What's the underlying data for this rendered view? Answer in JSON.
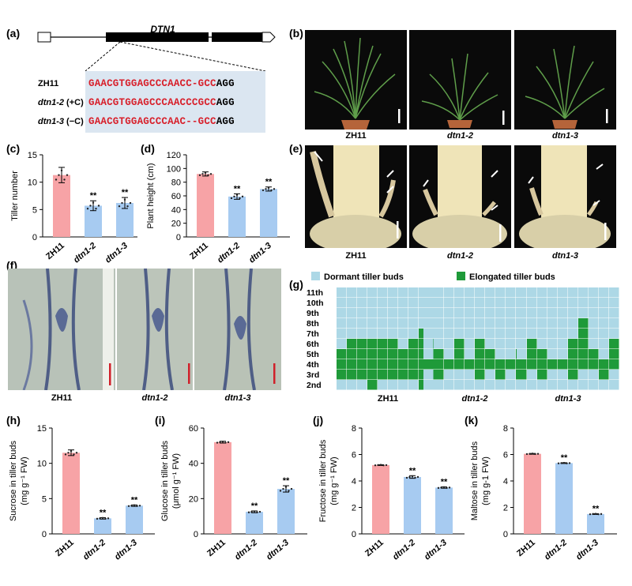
{
  "panels": {
    "a": "(a)",
    "b": "(b)",
    "c": "(c)",
    "d": "(d)",
    "e": "(e)",
    "f": "(f)",
    "g": "(g)",
    "h": "(h)",
    "i": "(i)",
    "j": "(j)",
    "k": "(k)"
  },
  "gene": {
    "name": "DTN1",
    "rows": [
      {
        "label": "ZH11",
        "seq_red": "GAACGTGGAGCCCAACC-GCC",
        "seq_black": "AGG"
      },
      {
        "label": "dtn1-2",
        "label_suffix": " (+C)",
        "seq_red": "GAACGTGGAGCCCAACCCGCC",
        "seq_black": "AGG"
      },
      {
        "label": "dtn1-3",
        "label_suffix": " (−C)",
        "seq_red": "GAACGTGGAGCCCAAC--GCC",
        "seq_black": "AGG"
      }
    ]
  },
  "genotypes": [
    "ZH11",
    "dtn1-2",
    "dtn1-3"
  ],
  "colors": {
    "zh11": "#f7a3a6",
    "mutant": "#a7cbf1",
    "dormant": "#add8e6",
    "elongated": "#1f9a39",
    "sig_seq": "#d8202b"
  },
  "tiller_buds": {
    "legend": {
      "dormant": "Dormant tiller buds",
      "elongated": "Elongated tiller buds"
    },
    "nodes": [
      "11th",
      "10th",
      "9th",
      "8th",
      "7th",
      "6th",
      "5th",
      "4th",
      "3rd",
      "2nd"
    ],
    "zh11_elongated_per_plant": [
      [
        3,
        5
      ],
      [
        3,
        6
      ],
      [
        3,
        6
      ],
      [
        2,
        6
      ],
      [
        3,
        6
      ],
      [
        3,
        6
      ],
      [
        3,
        5
      ],
      [
        3,
        6
      ],
      [
        2,
        7
      ],
      [
        3,
        6
      ]
    ],
    "dtn1_2_elongated_per_plant": [
      [
        4,
        4
      ],
      [
        3,
        5
      ],
      [
        4,
        4
      ],
      [
        4,
        6
      ],
      [
        4,
        4
      ],
      [
        3,
        6
      ],
      [
        4,
        5
      ],
      [
        3,
        4
      ],
      [
        4,
        4
      ],
      [
        3,
        5
      ]
    ],
    "dtn1_3_elongated_per_plant": [
      [
        3,
        4
      ],
      [
        4,
        6
      ],
      [
        3,
        5
      ],
      [
        4,
        4
      ],
      [
        4,
        4
      ],
      [
        3,
        6
      ],
      [
        4,
        8
      ],
      [
        4,
        5
      ],
      [
        3,
        4
      ],
      [
        4,
        6
      ]
    ]
  },
  "chart_data": [
    {
      "type": "bar",
      "panel": "c",
      "categories": [
        "ZH11",
        "dtn1-2",
        "dtn1-3"
      ],
      "values": [
        11.3,
        5.7,
        6.2
      ],
      "errors": [
        1.4,
        0.9,
        1.0
      ],
      "significance": [
        "",
        "**",
        "**"
      ],
      "ylabel": "Tiller number",
      "ylim": [
        0,
        15
      ],
      "yticks": [
        0,
        5,
        10,
        15
      ]
    },
    {
      "type": "bar",
      "panel": "d",
      "categories": [
        "ZH11",
        "dtn1-2",
        "dtn1-3"
      ],
      "values": [
        92,
        59,
        70
      ],
      "errors": [
        3,
        4,
        3
      ],
      "significance": [
        "",
        "**",
        "**"
      ],
      "ylabel": "Plant height (cm)",
      "ylim": [
        0,
        120
      ],
      "yticks": [
        0,
        20,
        40,
        60,
        80,
        100,
        120
      ]
    },
    {
      "type": "bar",
      "panel": "h",
      "categories": [
        "ZH11",
        "dtn1-2",
        "dtn1-3"
      ],
      "values": [
        11.5,
        2.2,
        4.0
      ],
      "errors": [
        0.4,
        0.1,
        0.1
      ],
      "significance": [
        "",
        "**",
        "**"
      ],
      "ylabel": "Sucrose in tiller buds",
      "yunit": "(mg g⁻¹ FW)",
      "ylim": [
        0,
        15
      ],
      "yticks": [
        0,
        5,
        10,
        15
      ]
    },
    {
      "type": "bar",
      "panel": "i",
      "categories": [
        "ZH11",
        "dtn1-2",
        "dtn1-3"
      ],
      "values": [
        52,
        12.5,
        25.5
      ],
      "errors": [
        0.5,
        0.5,
        1.8
      ],
      "significance": [
        "",
        "**",
        "**"
      ],
      "ylabel": "Glucose in tiller buds",
      "yunit": "(μmol g⁻¹ FW)",
      "ylim": [
        0,
        60
      ],
      "yticks": [
        0,
        20,
        40,
        60
      ]
    },
    {
      "type": "bar",
      "panel": "j",
      "categories": [
        "ZH11",
        "dtn1-2",
        "dtn1-3"
      ],
      "values": [
        5.2,
        4.3,
        3.5
      ],
      "errors": [
        0.03,
        0.1,
        0.05
      ],
      "significance": [
        "",
        "**",
        "**"
      ],
      "ylabel": "Fructose in tiller buds",
      "yunit": "(mg g⁻¹ FW)",
      "ylim": [
        0,
        8
      ],
      "yticks": [
        0,
        2,
        4,
        6,
        8
      ]
    },
    {
      "type": "bar",
      "panel": "k",
      "categories": [
        "ZH11",
        "dtn1-2",
        "dtn1-3"
      ],
      "values": [
        6.05,
        5.35,
        1.5
      ],
      "errors": [
        0.03,
        0.03,
        0.03
      ],
      "significance": [
        "",
        "**",
        "**"
      ],
      "ylabel": "Maltose in tiller buds",
      "yunit": "(mg g-1 FW)",
      "ylim": [
        0,
        8
      ],
      "yticks": [
        0,
        2,
        4,
        6,
        8
      ]
    }
  ]
}
